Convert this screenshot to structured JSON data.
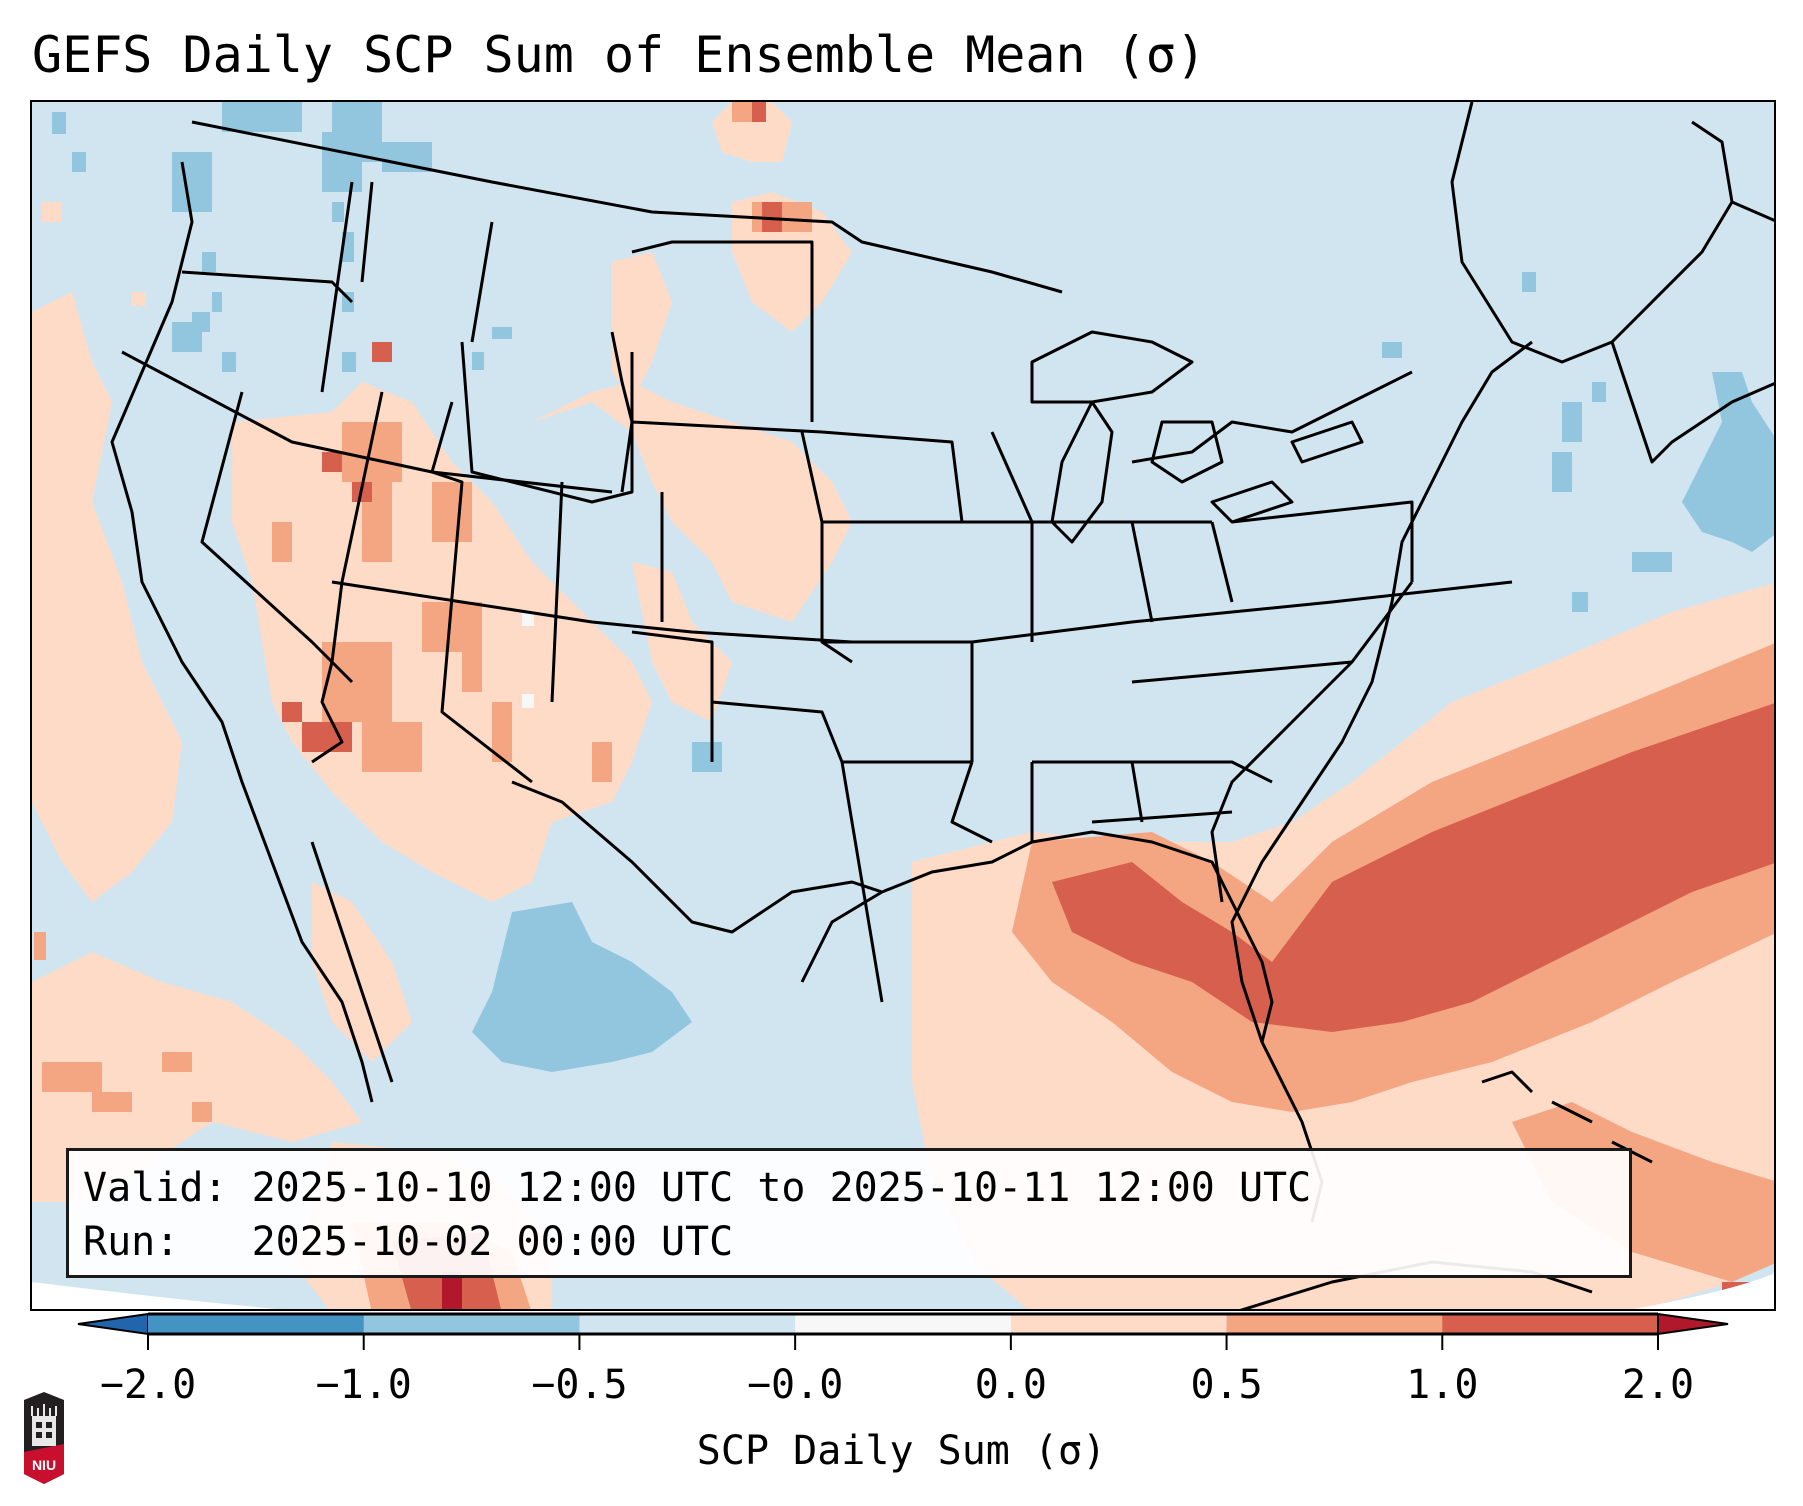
{
  "figure": {
    "title": "GEFS Daily SCP Sum of Ensemble Mean (σ)"
  },
  "map": {
    "region": "Contiguous United States",
    "variable": "SCP Daily Sum anomaly",
    "background_level_color": "#d1e5f0"
  },
  "info_box": {
    "valid_label": "Valid:",
    "valid_value": "2025-10-10 12:00 UTC to 2025-10-11 12:00 UTC",
    "run_label": "Run:",
    "run_value": "2025-10-02 00:00 UTC"
  },
  "colorbar": {
    "label": "SCP Daily Sum (σ)",
    "ticks": [
      "−2.0",
      "−1.0",
      "−0.5",
      "−0.0",
      "0.0",
      "0.5",
      "1.0",
      "2.0"
    ],
    "bins": [
      {
        "range": "< -2.0",
        "color": "#2166ac"
      },
      {
        "range": "-2.0 to -1.0",
        "color": "#4393c3"
      },
      {
        "range": "-1.0 to -0.5",
        "color": "#92c5de"
      },
      {
        "range": "-0.5 to -0.0",
        "color": "#d1e5f0"
      },
      {
        "range": "-0.0 to 0.0",
        "color": "#f7f7f7"
      },
      {
        "range": "0.0 to 0.5",
        "color": "#fddbc7"
      },
      {
        "range": "0.5 to 1.0",
        "color": "#f4a582"
      },
      {
        "range": "1.0 to 2.0",
        "color": "#d6604d"
      },
      {
        "range": "> 2.0",
        "color": "#b2182b"
      }
    ],
    "extend": "both"
  },
  "logo": {
    "text": "NIU",
    "icon": "university-tower-logo"
  }
}
